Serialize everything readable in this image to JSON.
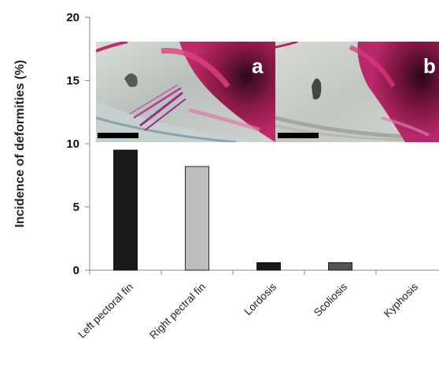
{
  "chart_data": {
    "type": "bar",
    "categories": [
      "Left pectoral fin",
      "Right pectral fin",
      "Lordosis",
      "Scoliosis",
      "Kyphosis"
    ],
    "values": [
      9.5,
      8.2,
      0.6,
      0.6,
      0
    ],
    "bar_colors": [
      "#1a1a1a",
      "#bdbdbd",
      "#1a1a1a",
      "#555555",
      "#1a1a1a"
    ],
    "ylabel": "Incidence of deformities  (%)",
    "xlabel": "",
    "ylim": [
      0,
      20
    ],
    "yticks": [
      "0",
      "5",
      "10",
      "15",
      "20"
    ],
    "grid": false,
    "legend": "none"
  },
  "inset_panels": [
    {
      "letter": "a",
      "scale_bar": true,
      "tint": "#d12a78"
    },
    {
      "letter": "b",
      "scale_bar": true,
      "tint": "#d12a78"
    }
  ]
}
